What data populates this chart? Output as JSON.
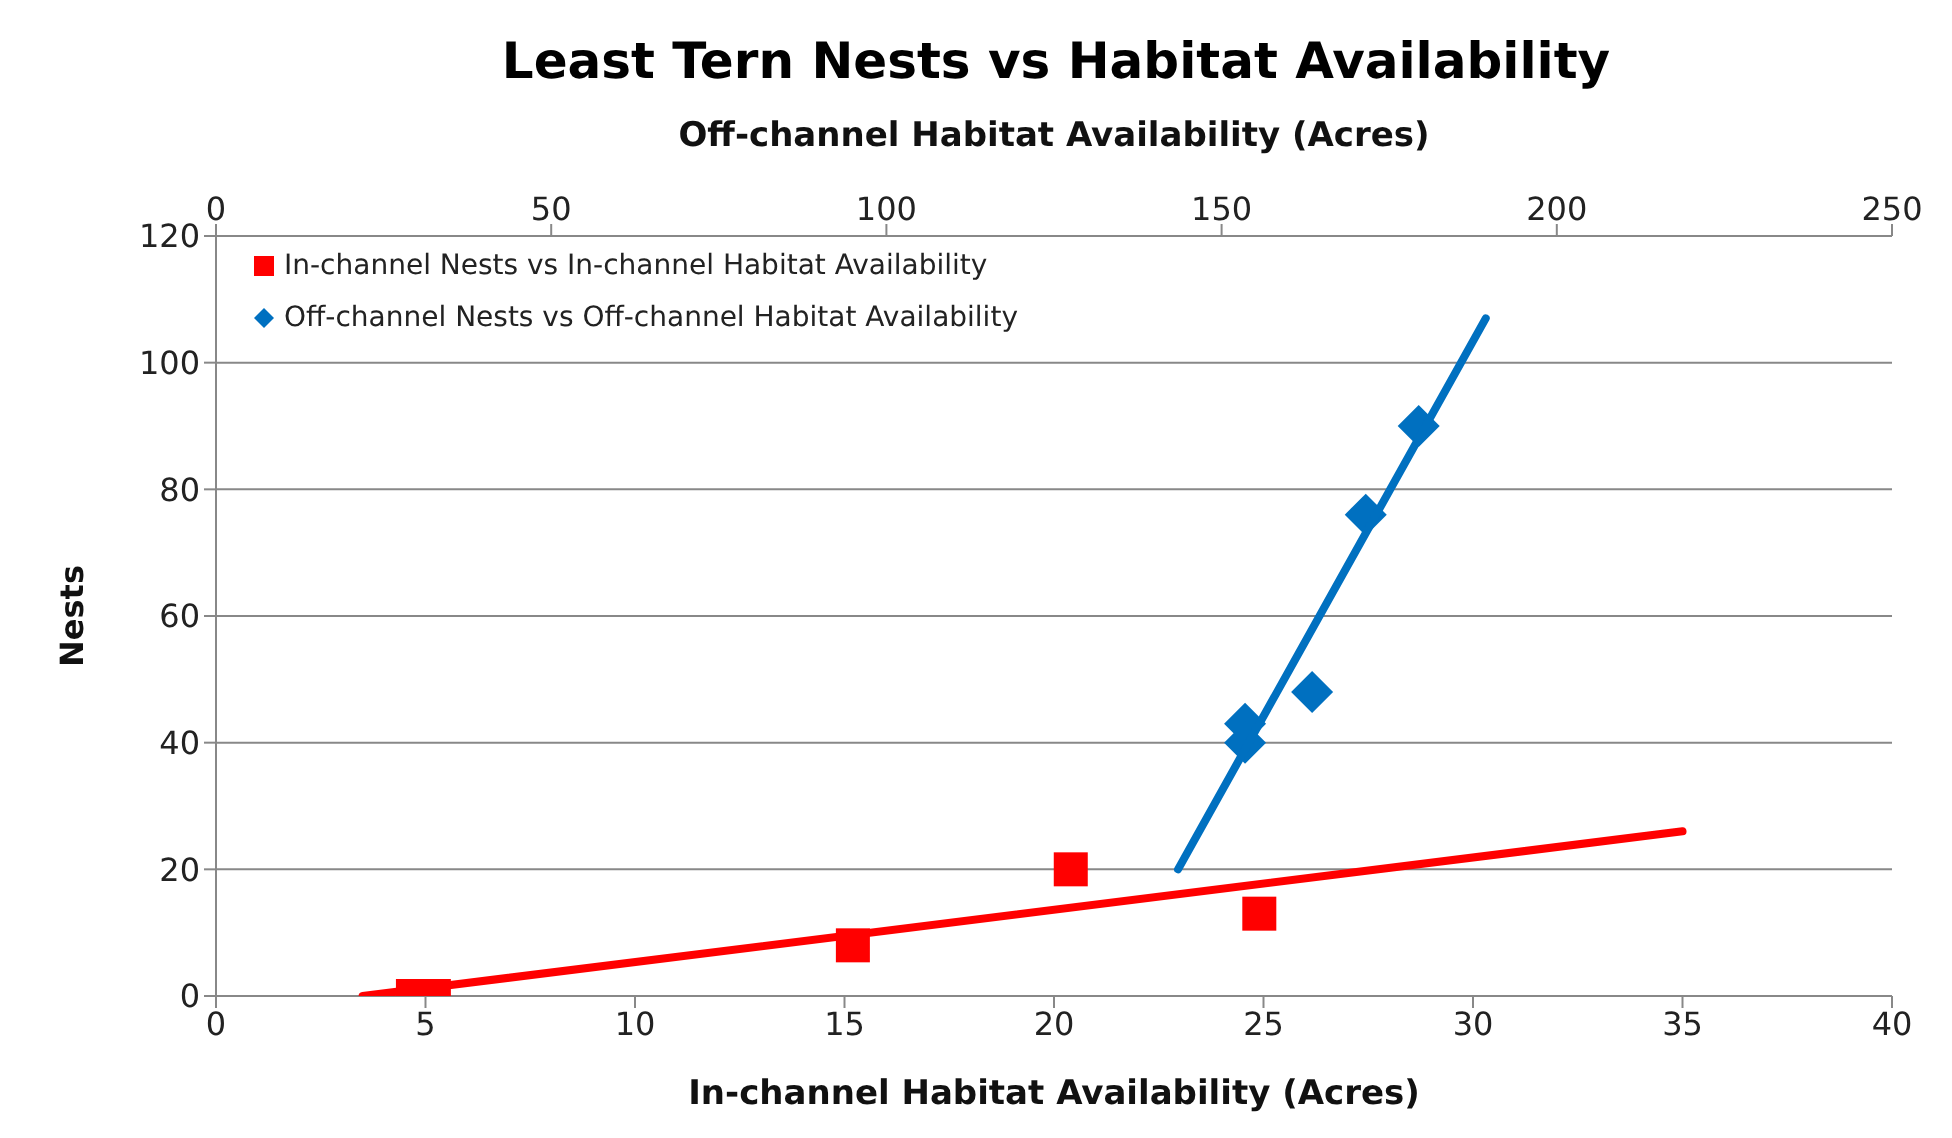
{
  "chart_data": {
    "type": "scatter",
    "title": "Least Tern Nests vs Habitat Availability",
    "xlabel": "In-channel Habitat Availability (Acres)",
    "x2label": "Off-channel Habitat Availability (Acres)",
    "ylabel": "Nests",
    "xlim": [
      0,
      40
    ],
    "xticks": [
      0,
      5,
      10,
      15,
      20,
      25,
      30,
      35,
      40
    ],
    "x2lim": [
      0,
      250
    ],
    "x2ticks": [
      0,
      50,
      100,
      150,
      200,
      250
    ],
    "ylim": [
      0,
      120
    ],
    "yticks": [
      0,
      20,
      40,
      60,
      80,
      100,
      120
    ],
    "grid": "y",
    "legend": "top left",
    "series": [
      {
        "name": "In-channel Nests vs In-channel Habitat Availability",
        "marker": "square",
        "color": "#ff0000",
        "x": [
          4.7,
          5.2,
          15.2,
          20.4,
          24.9
        ],
        "values": [
          0,
          0,
          8,
          20,
          13
        ]
      },
      {
        "name": "Off-channel Nests vs Off-channel Habitat Availability",
        "marker": "diamond",
        "color": "#0070c0",
        "axis": "x2",
        "x": [
          153.5,
          153.5,
          163.5,
          171.5,
          179.4
        ],
        "values": [
          43,
          40,
          48,
          76,
          90
        ]
      },
      {
        "type": "line",
        "color": "#ff0000",
        "x": [
          3.5,
          35
        ],
        "values": [
          0,
          26
        ]
      },
      {
        "type": "line",
        "color": "#0070c0",
        "axis": "x2",
        "x": [
          143.5,
          189.4
        ],
        "values": [
          20,
          107
        ]
      }
    ]
  }
}
